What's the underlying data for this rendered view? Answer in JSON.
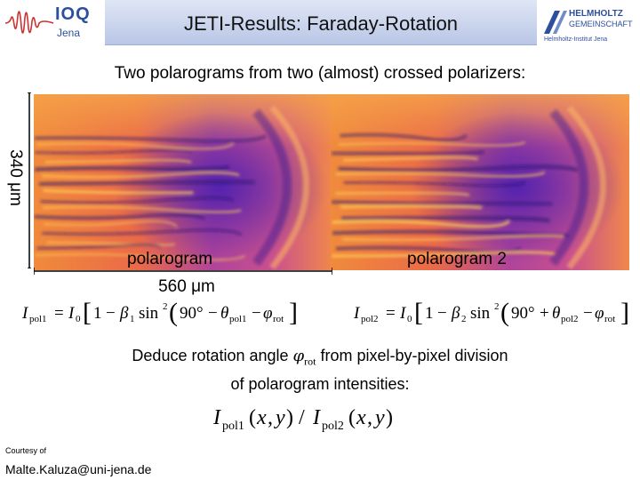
{
  "header": {
    "title": "JETI-Results: Faraday-Rotation",
    "logo_left": {
      "name": "IOQ",
      "sub": "Jena"
    },
    "logo_right": {
      "line1": "HELMHOLTZ",
      "line2": "GEMEINSCHAFT",
      "line3": "Helmholtz-Institut Jena"
    }
  },
  "subtitle": "Two polarograms from two (almost) crossed polarizers:",
  "scale": {
    "vertical": "340 μm",
    "horizontal": "560 μm"
  },
  "polarogram_labels": [
    "polarogram",
    "polarogram 2"
  ],
  "deduce": {
    "before": "Deduce rotation angle ",
    "symbol": "φ",
    "symbol_sub": "rot",
    "after": " from pixel-by-pixel division",
    "line2": "of polarogram intensities:"
  },
  "equations": {
    "eq1": "I_pol1 = I_0 [1 − β_1 sin²(90° − θ_pol1 − φ_rot)]",
    "eq2": "I_pol2 = I_0 [1 − β_2 sin²(90° + θ_pol2 − φ_rot)]",
    "ratio": "I_pol1(x, y) / I_pol2(x, y)"
  },
  "credits": {
    "courtesy": "Courtesy of",
    "email": "Malte.Kaluza@uni-jena.de"
  }
}
